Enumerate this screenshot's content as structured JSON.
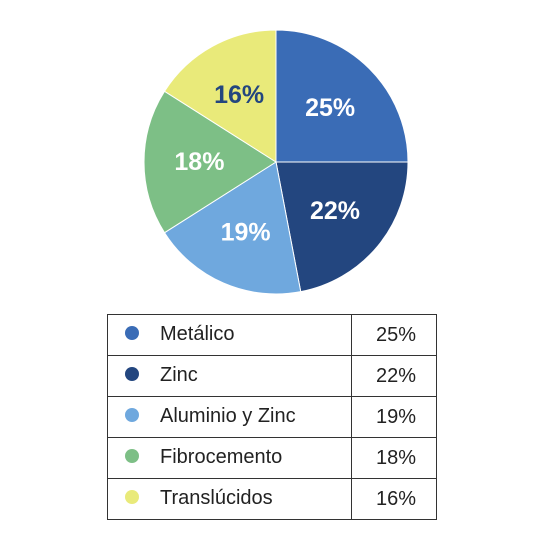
{
  "chart_data": {
    "type": "pie",
    "categories": [
      "Metálico",
      "Zinc",
      "Aluminio y Zinc",
      "Fibrocemento",
      "Translúcidos"
    ],
    "values": [
      25,
      22,
      19,
      18,
      16
    ],
    "value_labels": [
      "25%",
      "22%",
      "19%",
      "18%",
      "16%"
    ],
    "colors": [
      "#3a6cb6",
      "#23467f",
      "#6fa8de",
      "#7dbf86",
      "#e9ea7a"
    ],
    "label_colors": [
      "#ffffff",
      "#ffffff",
      "#ffffff",
      "#ffffff",
      "#23467f"
    ],
    "title": "",
    "legend_position": "bottom-table"
  },
  "legend": {
    "rows": [
      {
        "name": "Metálico",
        "value": "25%",
        "color": "#3a6cb6",
        "icon": "circle-marker"
      },
      {
        "name": "Zinc",
        "value": "22%",
        "color": "#23467f",
        "icon": "circle-marker"
      },
      {
        "name": "Aluminio y Zinc",
        "value": "19%",
        "color": "#6fa8de",
        "icon": "circle-marker"
      },
      {
        "name": "Fibrocemento",
        "value": "18%",
        "color": "#7dbf86",
        "icon": "circle-marker"
      },
      {
        "name": "Translúcidos",
        "value": "16%",
        "color": "#e9ea7a",
        "icon": "circle-marker"
      }
    ]
  }
}
